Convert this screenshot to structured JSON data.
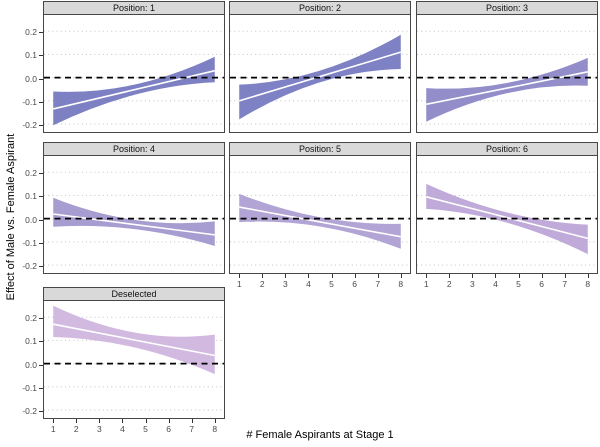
{
  "chart_data": {
    "type": "area",
    "title": "",
    "xlabel": "# Female Aspirants at Stage 1",
    "ylabel": "Effect of Male vs. Female Aspirant",
    "x_ticks": [
      1,
      2,
      3,
      4,
      5,
      6,
      7,
      8
    ],
    "y_ticks": [
      0.2,
      0.1,
      0.0,
      -0.1,
      -0.2
    ],
    "xlim": [
      0.6,
      8.4
    ],
    "ylim": [
      -0.23,
      0.27
    ],
    "grid": "horizontal-dotted",
    "legend": "none",
    "zero_reference_line": {
      "y": 0,
      "style": "dashed",
      "color": "#000000"
    },
    "fit_line_color": "#ffffff",
    "facets": [
      {
        "label": "Position: 1",
        "row": 0,
        "col": 0,
        "ribbon_color": "#7d81c3",
        "x": [
          1,
          8
        ],
        "fit_line": [
          -0.135,
          0.03
        ],
        "ci_upper": [
          -0.06,
          0.09
        ],
        "ci_lower": [
          -0.205,
          -0.02
        ],
        "ci_half_width_mid": 0.022,
        "x_axis": false,
        "y_axis": true
      },
      {
        "label": "Position: 2",
        "row": 0,
        "col": 1,
        "ribbon_color": "#7e82c4",
        "x": [
          1,
          8
        ],
        "fit_line": [
          -0.1,
          0.11
        ],
        "ci_upper": [
          -0.03,
          0.185
        ],
        "ci_lower": [
          -0.18,
          0.037
        ],
        "ci_half_width_mid": 0.025,
        "x_axis": false,
        "y_axis": false
      },
      {
        "label": "Position: 3",
        "row": 0,
        "col": 2,
        "ribbon_color": "#938ec9",
        "x": [
          1,
          8
        ],
        "fit_line": [
          -0.115,
          0.025
        ],
        "ci_upper": [
          -0.045,
          0.085
        ],
        "ci_lower": [
          -0.19,
          -0.035
        ],
        "ci_half_width_mid": 0.022,
        "x_axis": false,
        "y_axis": false
      },
      {
        "label": "Position: 4",
        "row": 1,
        "col": 0,
        "ribbon_color": "#a89dd0",
        "x": [
          1,
          8
        ],
        "fit_line": [
          0.02,
          -0.07
        ],
        "ci_upper": [
          0.09,
          -0.012
        ],
        "ci_lower": [
          -0.035,
          -0.118
        ],
        "ci_half_width_mid": 0.02,
        "x_axis": false,
        "y_axis": true
      },
      {
        "label": "Position: 5",
        "row": 1,
        "col": 1,
        "ribbon_color": "#b2a4d5",
        "x": [
          1,
          8
        ],
        "fit_line": [
          0.05,
          -0.078
        ],
        "ci_upper": [
          0.107,
          -0.022
        ],
        "ci_lower": [
          -0.015,
          -0.13
        ],
        "ci_half_width_mid": 0.02,
        "x_axis": true,
        "y_axis": false
      },
      {
        "label": "Position: 6",
        "row": 1,
        "col": 2,
        "ribbon_color": "#c0aad9",
        "x": [
          1,
          8
        ],
        "fit_line": [
          0.094,
          -0.085
        ],
        "ci_upper": [
          0.15,
          -0.026
        ],
        "ci_lower": [
          0.042,
          -0.153
        ],
        "ci_half_width_mid": 0.022,
        "x_axis": true,
        "y_axis": false
      },
      {
        "label": "Deselected",
        "row": 2,
        "col": 0,
        "ribbon_color": "#d2b9e0",
        "x": [
          1,
          8
        ],
        "fit_line": [
          0.17,
          0.035
        ],
        "ci_upper": [
          0.25,
          0.125
        ],
        "ci_lower": [
          0.115,
          -0.045
        ],
        "ci_half_width_mid": 0.032,
        "x_axis": true,
        "y_axis": true
      }
    ]
  },
  "style": {
    "strip_fill": "#d9d9d9",
    "strip_border": "#474747",
    "panel_border": "#474747",
    "grid_color": "#c9c9c9",
    "tick_color": "#333333",
    "tick_label_color": "#4a4a4a",
    "axis_title_color": "#000000",
    "background": "#ffffff"
  }
}
